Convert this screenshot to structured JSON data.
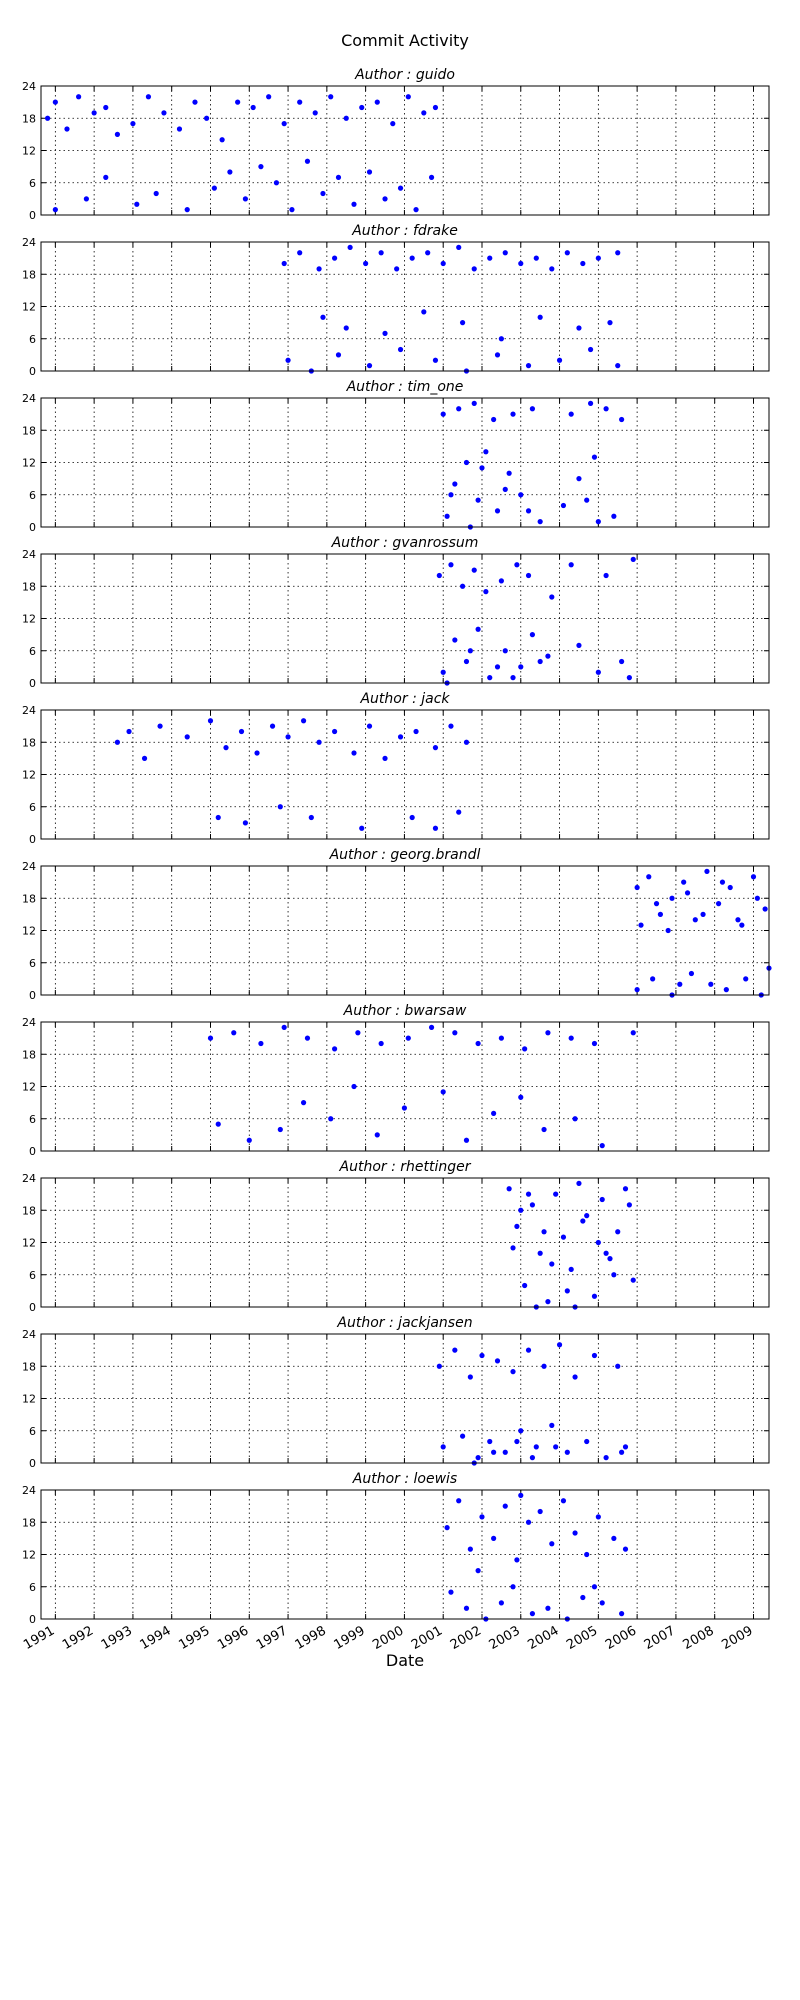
{
  "chart_data": {
    "type": "scatter",
    "title": "Commit Activity",
    "xlabel": "Date",
    "color": "#0000ff",
    "grid": true,
    "xlim": [
      1990.63,
      2009.4
    ],
    "xticks": [
      1991,
      1992,
      1993,
      1994,
      1995,
      1996,
      1997,
      1998,
      1999,
      2000,
      2001,
      2002,
      2003,
      2004,
      2005,
      2006,
      2007,
      2008,
      2009
    ],
    "ylim": [
      0,
      24
    ],
    "yticks": [
      0,
      6,
      12,
      18,
      24
    ],
    "series": [
      {
        "name": "Author : guido",
        "x": [
          1990.8,
          1991.0,
          1991.3,
          1991.6,
          1992.0,
          1992.3,
          1992.6,
          1993.0,
          1993.4,
          1993.8,
          1994.2,
          1994.6,
          1994.9,
          1995.3,
          1995.7,
          1996.1,
          1996.5,
          1996.9,
          1997.3,
          1997.7,
          1998.1,
          1998.5,
          1998.9,
          1999.3,
          1999.7,
          2000.1,
          2000.5,
          2000.8,
          1991.0,
          1991.8,
          1992.3,
          1993.1,
          1993.6,
          1994.4,
          1995.1,
          1995.5,
          1995.9,
          1996.3,
          1996.7,
          1997.1,
          1997.5,
          1997.9,
          1998.3,
          1998.7,
          1999.1,
          1999.5,
          1999.9,
          2000.3,
          2000.7
        ],
        "values": [
          18,
          21,
          16,
          22,
          19,
          20,
          15,
          17,
          22,
          19,
          16,
          21,
          18,
          14,
          21,
          20,
          22,
          17,
          21,
          19,
          22,
          18,
          20,
          21,
          17,
          22,
          19,
          20,
          1,
          3,
          7,
          2,
          4,
          1,
          5,
          8,
          3,
          9,
          6,
          1,
          10,
          4,
          7,
          2,
          8,
          3,
          5,
          1,
          7
        ]
      },
      {
        "name": "Author : fdrake",
        "x": [
          1996.9,
          1997.3,
          1997.8,
          1998.2,
          1998.6,
          1999.0,
          1999.4,
          1999.8,
          2000.2,
          2000.6,
          2001.0,
          2001.4,
          2001.8,
          2002.2,
          2002.6,
          2003.0,
          2003.4,
          2003.8,
          2004.2,
          2004.6,
          2005.0,
          2005.5,
          1997.9,
          1998.5,
          1999.5,
          2000.5,
          2001.5,
          2002.5,
          2003.5,
          2004.5,
          2005.3,
          1997.0,
          1997.6,
          1998.3,
          1999.1,
          1999.9,
          2000.8,
          2001.6,
          2002.4,
          2003.2,
          2004.0,
          2004.8,
          2005.5
        ],
        "values": [
          20,
          22,
          19,
          21,
          23,
          20,
          22,
          19,
          21,
          22,
          20,
          23,
          19,
          21,
          22,
          20,
          21,
          19,
          22,
          20,
          21,
          22,
          10,
          8,
          7,
          11,
          9,
          6,
          10,
          8,
          9,
          2,
          0,
          3,
          1,
          4,
          2,
          0,
          3,
          1,
          2,
          4,
          1
        ]
      },
      {
        "name": "Author : tim_one",
        "x": [
          2001.0,
          2001.4,
          2001.8,
          2002.3,
          2002.8,
          2003.3,
          2004.3,
          2004.8,
          2005.2,
          2005.6,
          2001.1,
          2001.3,
          2001.6,
          2001.9,
          2002.1,
          2002.4,
          2002.7,
          2003.0,
          2003.5,
          2004.1,
          2004.5,
          2004.9,
          2005.4,
          2001.2,
          2001.7,
          2002.0,
          2002.6,
          2003.2,
          2004.7,
          2005.0
        ],
        "values": [
          21,
          22,
          23,
          20,
          21,
          22,
          21,
          23,
          22,
          20,
          2,
          8,
          12,
          5,
          14,
          3,
          10,
          6,
          1,
          4,
          9,
          13,
          2,
          6,
          0,
          11,
          7,
          3,
          5,
          1
        ]
      },
      {
        "name": "Author : gvanrossum",
        "x": [
          2000.9,
          2001.2,
          2001.5,
          2001.8,
          2002.1,
          2002.5,
          2002.9,
          2003.2,
          2003.8,
          2004.3,
          2005.2,
          2005.9,
          2001.0,
          2001.3,
          2001.6,
          2001.9,
          2002.2,
          2002.6,
          2003.0,
          2003.3,
          2003.7,
          2004.5,
          2005.0,
          2005.6,
          2001.1,
          2001.7,
          2002.4,
          2002.8,
          2003.5,
          2005.8
        ],
        "values": [
          20,
          22,
          18,
          21,
          17,
          19,
          22,
          20,
          16,
          22,
          20,
          23,
          2,
          8,
          4,
          10,
          1,
          6,
          3,
          9,
          5,
          7,
          2,
          4,
          0,
          6,
          3,
          1,
          4,
          1
        ]
      },
      {
        "name": "Author : jack",
        "x": [
          1992.6,
          1992.9,
          1993.3,
          1993.7,
          1994.4,
          1995.0,
          1995.4,
          1995.8,
          1996.2,
          1996.6,
          1997.0,
          1997.4,
          1997.8,
          1998.2,
          1998.7,
          1999.1,
          1999.5,
          1999.9,
          2000.3,
          2000.8,
          2001.2,
          2001.6,
          1995.2,
          1995.9,
          1996.8,
          1997.6,
          1998.9,
          2000.2,
          2000.8,
          2001.4
        ],
        "values": [
          18,
          20,
          15,
          21,
          19,
          22,
          17,
          20,
          16,
          21,
          19,
          22,
          18,
          20,
          16,
          21,
          15,
          19,
          20,
          17,
          21,
          18,
          4,
          3,
          6,
          4,
          2,
          4,
          2,
          5
        ]
      },
      {
        "name": "Author : georg.brandl",
        "x": [
          2006.0,
          2006.3,
          2006.6,
          2006.9,
          2007.2,
          2007.5,
          2007.8,
          2008.1,
          2008.4,
          2008.7,
          2009.0,
          2009.3,
          2006.1,
          2006.5,
          2006.8,
          2007.3,
          2007.7,
          2008.2,
          2008.6,
          2009.1,
          2006.0,
          2006.4,
          2006.9,
          2007.4,
          2007.9,
          2008.3,
          2008.8,
          2009.2,
          2009.4,
          2007.1
        ],
        "values": [
          20,
          22,
          15,
          18,
          21,
          14,
          23,
          17,
          20,
          13,
          22,
          16,
          13,
          17,
          12,
          19,
          15,
          21,
          14,
          18,
          1,
          3,
          0,
          4,
          2,
          1,
          3,
          0,
          5,
          2
        ]
      },
      {
        "name": "Author : bwarsaw",
        "x": [
          1995.0,
          1995.6,
          1996.3,
          1996.9,
          1997.5,
          1998.2,
          1998.8,
          1999.4,
          2000.1,
          2000.7,
          2001.3,
          2001.9,
          2002.5,
          2003.1,
          2003.7,
          2004.3,
          2004.9,
          2005.9,
          1995.2,
          1996.0,
          1996.8,
          1997.4,
          1998.1,
          1998.7,
          1999.3,
          2000.0,
          2001.0,
          2001.6,
          2002.3,
          2003.0,
          2003.6,
          2004.4,
          2005.1
        ],
        "values": [
          21,
          22,
          20,
          23,
          21,
          19,
          22,
          20,
          21,
          23,
          22,
          20,
          21,
          19,
          22,
          21,
          20,
          22,
          5,
          2,
          4,
          9,
          6,
          12,
          3,
          8,
          11,
          2,
          7,
          10,
          4,
          6,
          1
        ]
      },
      {
        "name": "Author : rhettinger",
        "x": [
          2002.7,
          2002.9,
          2003.1,
          2003.3,
          2003.5,
          2003.7,
          2003.9,
          2004.1,
          2004.3,
          2004.5,
          2004.7,
          2004.9,
          2005.1,
          2005.3,
          2005.5,
          2005.7,
          2005.9,
          2002.8,
          2003.0,
          2003.4,
          2003.8,
          2004.2,
          2004.6,
          2005.0,
          2005.4,
          2005.8,
          2003.2,
          2003.6,
          2004.4,
          2005.2
        ],
        "values": [
          22,
          15,
          4,
          19,
          10,
          1,
          21,
          13,
          7,
          23,
          17,
          2,
          20,
          9,
          14,
          22,
          5,
          11,
          18,
          0,
          8,
          3,
          16,
          12,
          6,
          19,
          21,
          14,
          0,
          10
        ]
      },
      {
        "name": "Author : jackjansen",
        "x": [
          2000.9,
          2001.3,
          2001.7,
          2002.0,
          2002.4,
          2002.8,
          2003.2,
          2003.6,
          2004.0,
          2004.4,
          2004.9,
          2005.5,
          2001.0,
          2001.5,
          2001.9,
          2002.2,
          2002.6,
          2003.0,
          2003.4,
          2003.8,
          2004.2,
          2004.7,
          2005.2,
          2005.7,
          2001.8,
          2002.3,
          2002.9,
          2003.3,
          2003.9,
          2005.6
        ],
        "values": [
          18,
          21,
          16,
          20,
          19,
          17,
          21,
          18,
          22,
          16,
          20,
          18,
          3,
          5,
          1,
          4,
          2,
          6,
          3,
          7,
          2,
          4,
          1,
          3,
          0,
          2,
          4,
          1,
          3,
          2
        ]
      },
      {
        "name": "Author : loewis",
        "x": [
          2001.1,
          2001.4,
          2001.7,
          2002.0,
          2002.3,
          2002.6,
          2002.9,
          2003.2,
          2003.5,
          2003.8,
          2004.1,
          2004.4,
          2004.7,
          2005.0,
          2005.4,
          2005.7,
          2001.2,
          2001.6,
          2002.1,
          2002.5,
          2002.8,
          2003.3,
          2003.7,
          2004.2,
          2004.6,
          2005.1,
          2005.6,
          2001.9,
          2003.0,
          2004.9
        ],
        "values": [
          17,
          22,
          13,
          19,
          15,
          21,
          11,
          18,
          20,
          14,
          22,
          16,
          12,
          19,
          15,
          13,
          5,
          2,
          0,
          3,
          6,
          1,
          2,
          0,
          4,
          3,
          1,
          9,
          23,
          6
        ]
      }
    ]
  }
}
